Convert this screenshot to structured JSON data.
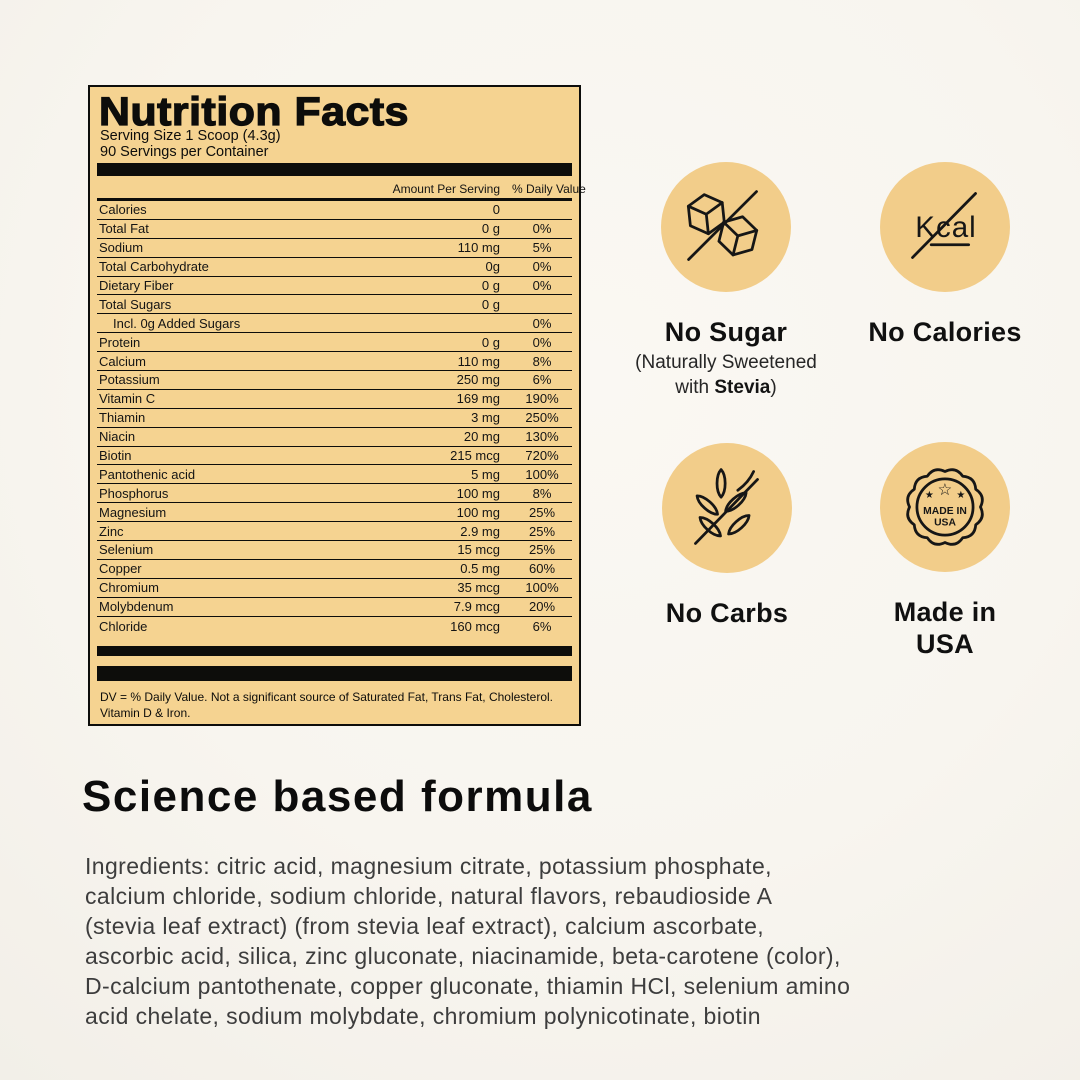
{
  "colors": {
    "page_bg": "#f8f5ef",
    "label_bg": "#f5d391",
    "circle_bg": "#f2cd8a",
    "ink": "#0d0d0b"
  },
  "label": {
    "title": "Nutrition Facts",
    "serving_size": "Serving Size 1 Scoop (4.3g)",
    "servings_per_container": "90 Servings per Container",
    "col_amount": "Amount Per Serving",
    "col_dv": "% Daily Value",
    "rows": [
      {
        "name": "Calories",
        "amount": "0",
        "dv": ""
      },
      {
        "name": "Total Fat",
        "amount": "0 g",
        "dv": "0%"
      },
      {
        "name": "Sodium",
        "amount": "110 mg",
        "dv": "5%"
      },
      {
        "name": "Total Carbohydrate",
        "amount": "0g",
        "dv": "0%"
      },
      {
        "name": "Dietary Fiber",
        "amount": "0 g",
        "dv": "0%"
      },
      {
        "name": "Total Sugars",
        "amount": "0 g",
        "dv": ""
      },
      {
        "name": "Incl. 0g Added Sugars",
        "amount": "",
        "dv": "0%",
        "indent": true
      },
      {
        "name": "Protein",
        "amount": "0 g",
        "dv": "0%"
      },
      {
        "name": "Calcium",
        "amount": "110 mg",
        "dv": "8%"
      },
      {
        "name": "Potassium",
        "amount": "250 mg",
        "dv": "6%"
      },
      {
        "name": "Vitamin C",
        "amount": "169 mg",
        "dv": "190%"
      },
      {
        "name": "Thiamin",
        "amount": "3 mg",
        "dv": "250%"
      },
      {
        "name": "Niacin",
        "amount": "20 mg",
        "dv": "130%"
      },
      {
        "name": "Biotin",
        "amount": "215 mcg",
        "dv": "720%"
      },
      {
        "name": "Pantothenic acid",
        "amount": "5 mg",
        "dv": "100%"
      },
      {
        "name": "Phosphorus",
        "amount": "100 mg",
        "dv": "8%"
      },
      {
        "name": "Magnesium",
        "amount": "100 mg",
        "dv": "25%"
      },
      {
        "name": "Zinc",
        "amount": "2.9 mg",
        "dv": "25%"
      },
      {
        "name": "Selenium",
        "amount": "15 mcg",
        "dv": "25%"
      },
      {
        "name": "Copper",
        "amount": "0.5 mg",
        "dv": "60%"
      },
      {
        "name": "Chromium",
        "amount": "35 mcg",
        "dv": "100%"
      },
      {
        "name": "Molybdenum",
        "amount": "7.9 mcg",
        "dv": "20%"
      },
      {
        "name": "Chloride",
        "amount": "160 mcg",
        "dv": "6%"
      }
    ],
    "footnote_line1": "DV = % Daily Value. Not a significant source of Saturated Fat, Trans Fat, Cholesterol.",
    "footnote_line2": "Vitamin D & Iron."
  },
  "badges": {
    "no_sugar": {
      "icon": "sugar-cubes-crossed-icon",
      "title": "No Sugar",
      "note_line1": "(Naturally Sweetened",
      "note_line2_prefix": "with ",
      "note_line2_bold": "Stevia",
      "note_line2_suffix": ")"
    },
    "no_calories": {
      "icon": "kcal-crossed-icon",
      "icon_text": "Kcal",
      "title": "No Calories"
    },
    "no_carbs": {
      "icon": "wheat-crossed-icon",
      "title": "No Carbs"
    },
    "made_in_usa": {
      "icon": "made-in-usa-seal-icon",
      "seal_line1": "MADE IN",
      "seal_line2": "USA",
      "star": "★",
      "star_outline": "☆",
      "title_line1": "Made in",
      "title_line2": "USA"
    }
  },
  "section": {
    "heading": "Science based formula",
    "ingredients_lines": [
      "Ingredients: citric acid, magnesium citrate, potassium phosphate,",
      "calcium chloride, sodium chloride, natural flavors, rebaudioside A",
      "(stevia leaf extract) (from stevia leaf extract), calcium ascorbate,",
      "ascorbic acid, silica, zinc gluconate, niacinamide, beta-carotene (color),",
      "D-calcium pantothenate, copper gluconate, thiamin HCl, selenium amino",
      "acid chelate, sodium molybdate, chromium polynicotinate, biotin"
    ]
  }
}
